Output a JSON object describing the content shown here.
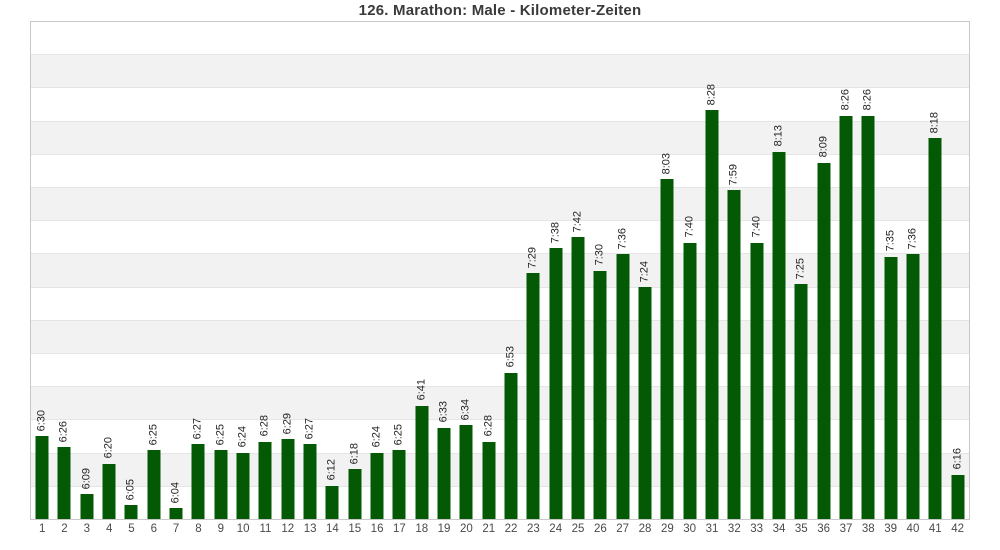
{
  "colors": {
    "bar": "#045a04",
    "band_alt": "#f2f2f2",
    "grid_line": "#e5e5e5",
    "plot_border": "#c8c8c8",
    "title_text": "#3a3a3a",
    "value_label_text": "#262626",
    "tick_text": "#4a4a4a"
  },
  "chart_data": {
    "type": "bar",
    "title": "126. Marathon: Male - Kilometer-Zeiten",
    "xlabel": "",
    "ylabel": "",
    "legend": "none",
    "grid_bands": 15,
    "ylim_seconds": [
      360,
      540
    ],
    "ylim_labels": [
      "6:00",
      "9:00"
    ],
    "categories": [
      1,
      2,
      3,
      4,
      5,
      6,
      7,
      8,
      9,
      10,
      11,
      12,
      13,
      14,
      15,
      16,
      17,
      18,
      19,
      20,
      21,
      22,
      23,
      24,
      25,
      26,
      27,
      28,
      29,
      30,
      31,
      32,
      33,
      34,
      35,
      36,
      37,
      38,
      39,
      40,
      41,
      42
    ],
    "values": [
      "6:30",
      "6:26",
      "6:09",
      "6:20",
      "6:05",
      "6:25",
      "6:04",
      "6:27",
      "6:25",
      "6:24",
      "6:28",
      "6:29",
      "6:27",
      "6:12",
      "6:18",
      "6:24",
      "6:25",
      "6:41",
      "6:33",
      "6:34",
      "6:28",
      "6:53",
      "7:29",
      "7:38",
      "7:42",
      "7:30",
      "7:36",
      "7:24",
      "8:03",
      "7:40",
      "8:28",
      "7:59",
      "7:40",
      "8:13",
      "7:25",
      "8:09",
      "8:26",
      "8:26",
      "7:35",
      "7:36",
      "8:18",
      "6:16"
    ],
    "values_seconds": [
      390,
      386,
      369,
      380,
      365,
      385,
      364,
      387,
      385,
      384,
      388,
      389,
      387,
      372,
      378,
      384,
      385,
      401,
      393,
      394,
      388,
      413,
      449,
      458,
      462,
      450,
      456,
      444,
      483,
      460,
      508,
      479,
      460,
      493,
      445,
      489,
      506,
      506,
      455,
      456,
      498,
      376
    ]
  }
}
